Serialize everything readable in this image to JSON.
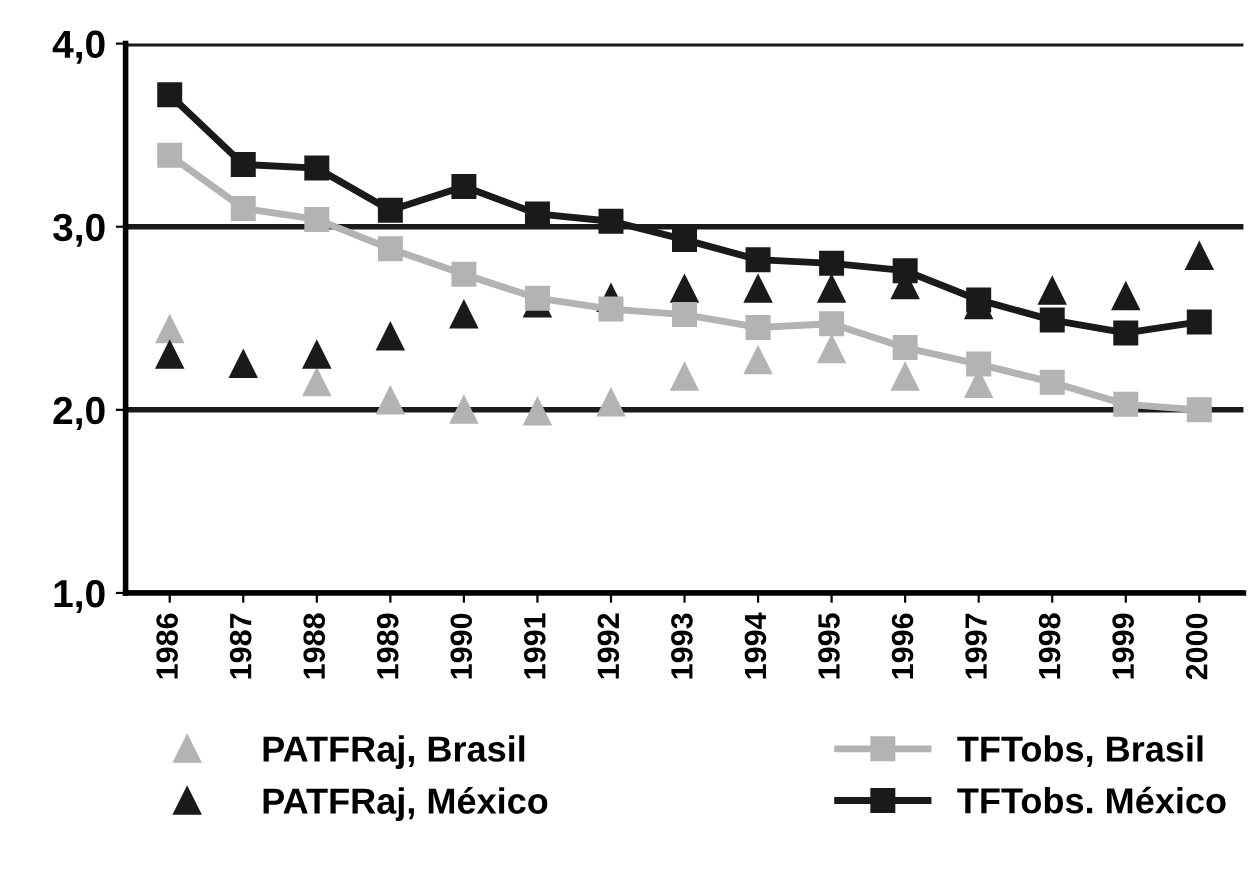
{
  "chart_data": {
    "type": "line",
    "categories": [
      "1986",
      "1987",
      "1988",
      "1989",
      "1990",
      "1991",
      "1992",
      "1993",
      "1994",
      "1995",
      "1996",
      "1997",
      "1998",
      "1999",
      "2000"
    ],
    "ylim": [
      1,
      4
    ],
    "yticks": [
      {
        "value": 1,
        "label": "1,0"
      },
      {
        "value": 2,
        "label": "2,0"
      },
      {
        "value": 3,
        "label": "3,0"
      },
      {
        "value": 4,
        "label": "4,0"
      }
    ],
    "grid": "y",
    "legend": "bottom",
    "series": [
      {
        "name": "PATFRaj, Brasil",
        "type": "scatter",
        "marker": "triangle",
        "color": "#b3b3b3",
        "values": [
          2.44,
          null,
          2.15,
          2.05,
          2.0,
          1.99,
          2.04,
          2.18,
          2.27,
          2.33,
          2.18,
          2.14,
          null,
          null,
          null
        ]
      },
      {
        "name": "PATFRaj, México",
        "type": "scatter",
        "marker": "triangle",
        "color": "#1a1a1a",
        "values": [
          2.3,
          2.25,
          2.3,
          2.4,
          2.52,
          2.58,
          2.61,
          2.66,
          2.66,
          2.66,
          2.68,
          2.57,
          2.65,
          2.62,
          2.84
        ]
      },
      {
        "name": "TFTobs, Brasil",
        "marker": "square",
        "color": "#b3b3b3",
        "values": [
          3.39,
          3.1,
          3.04,
          2.88,
          2.74,
          2.61,
          2.55,
          2.52,
          2.45,
          2.47,
          2.34,
          2.25,
          2.15,
          2.03,
          2.0
        ]
      },
      {
        "name": "TFTobs. México",
        "marker": "square",
        "color": "#1a1a1a",
        "values": [
          3.72,
          3.34,
          3.32,
          3.09,
          3.22,
          3.07,
          3.03,
          2.93,
          2.82,
          2.8,
          2.76,
          2.6,
          2.49,
          2.42,
          2.48
        ]
      }
    ]
  }
}
